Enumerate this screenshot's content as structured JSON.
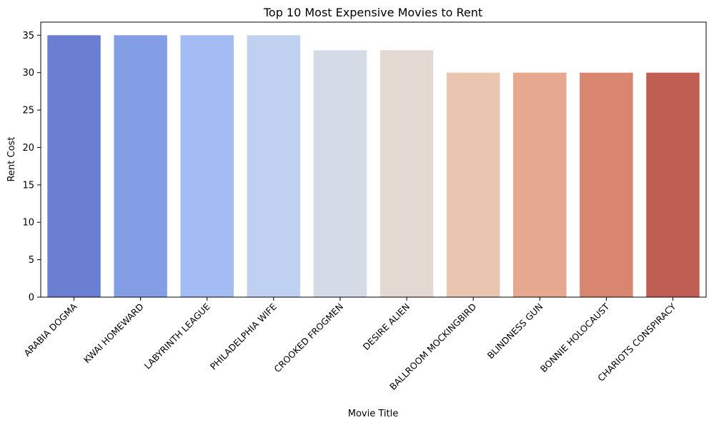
{
  "chart_data": {
    "type": "bar",
    "title": "Top 10 Most Expensive Movies to Rent",
    "xlabel": "Movie Title",
    "ylabel": "Rent Cost",
    "categories": [
      "ARABIA DOGMA",
      "KWAI HOMEWARD",
      "LABYRINTH LEAGUE",
      "PHILADELPHIA WIFE",
      "CROOKED FROGMEN",
      "DESIRE ALIEN",
      "BALLROOM MOCKINGBIRD",
      "BLINDNESS GUN",
      "BONNIE HOLOCAUST",
      "CHARIOTS CONSPIRACY"
    ],
    "values": [
      35,
      35,
      35,
      35,
      33,
      33,
      30,
      30,
      30,
      30
    ],
    "colors": [
      "#6a7ed2",
      "#849ee5",
      "#a3bcf3",
      "#bfd0f1",
      "#d5dbe6",
      "#e4d9d2",
      "#eac6b1",
      "#e6a88e",
      "#d8866f",
      "#c05e53"
    ],
    "ylim": [
      0,
      36.75
    ],
    "yticks": [
      0,
      5,
      10,
      15,
      20,
      25,
      30,
      35
    ],
    "grid": false,
    "legend": "none"
  }
}
